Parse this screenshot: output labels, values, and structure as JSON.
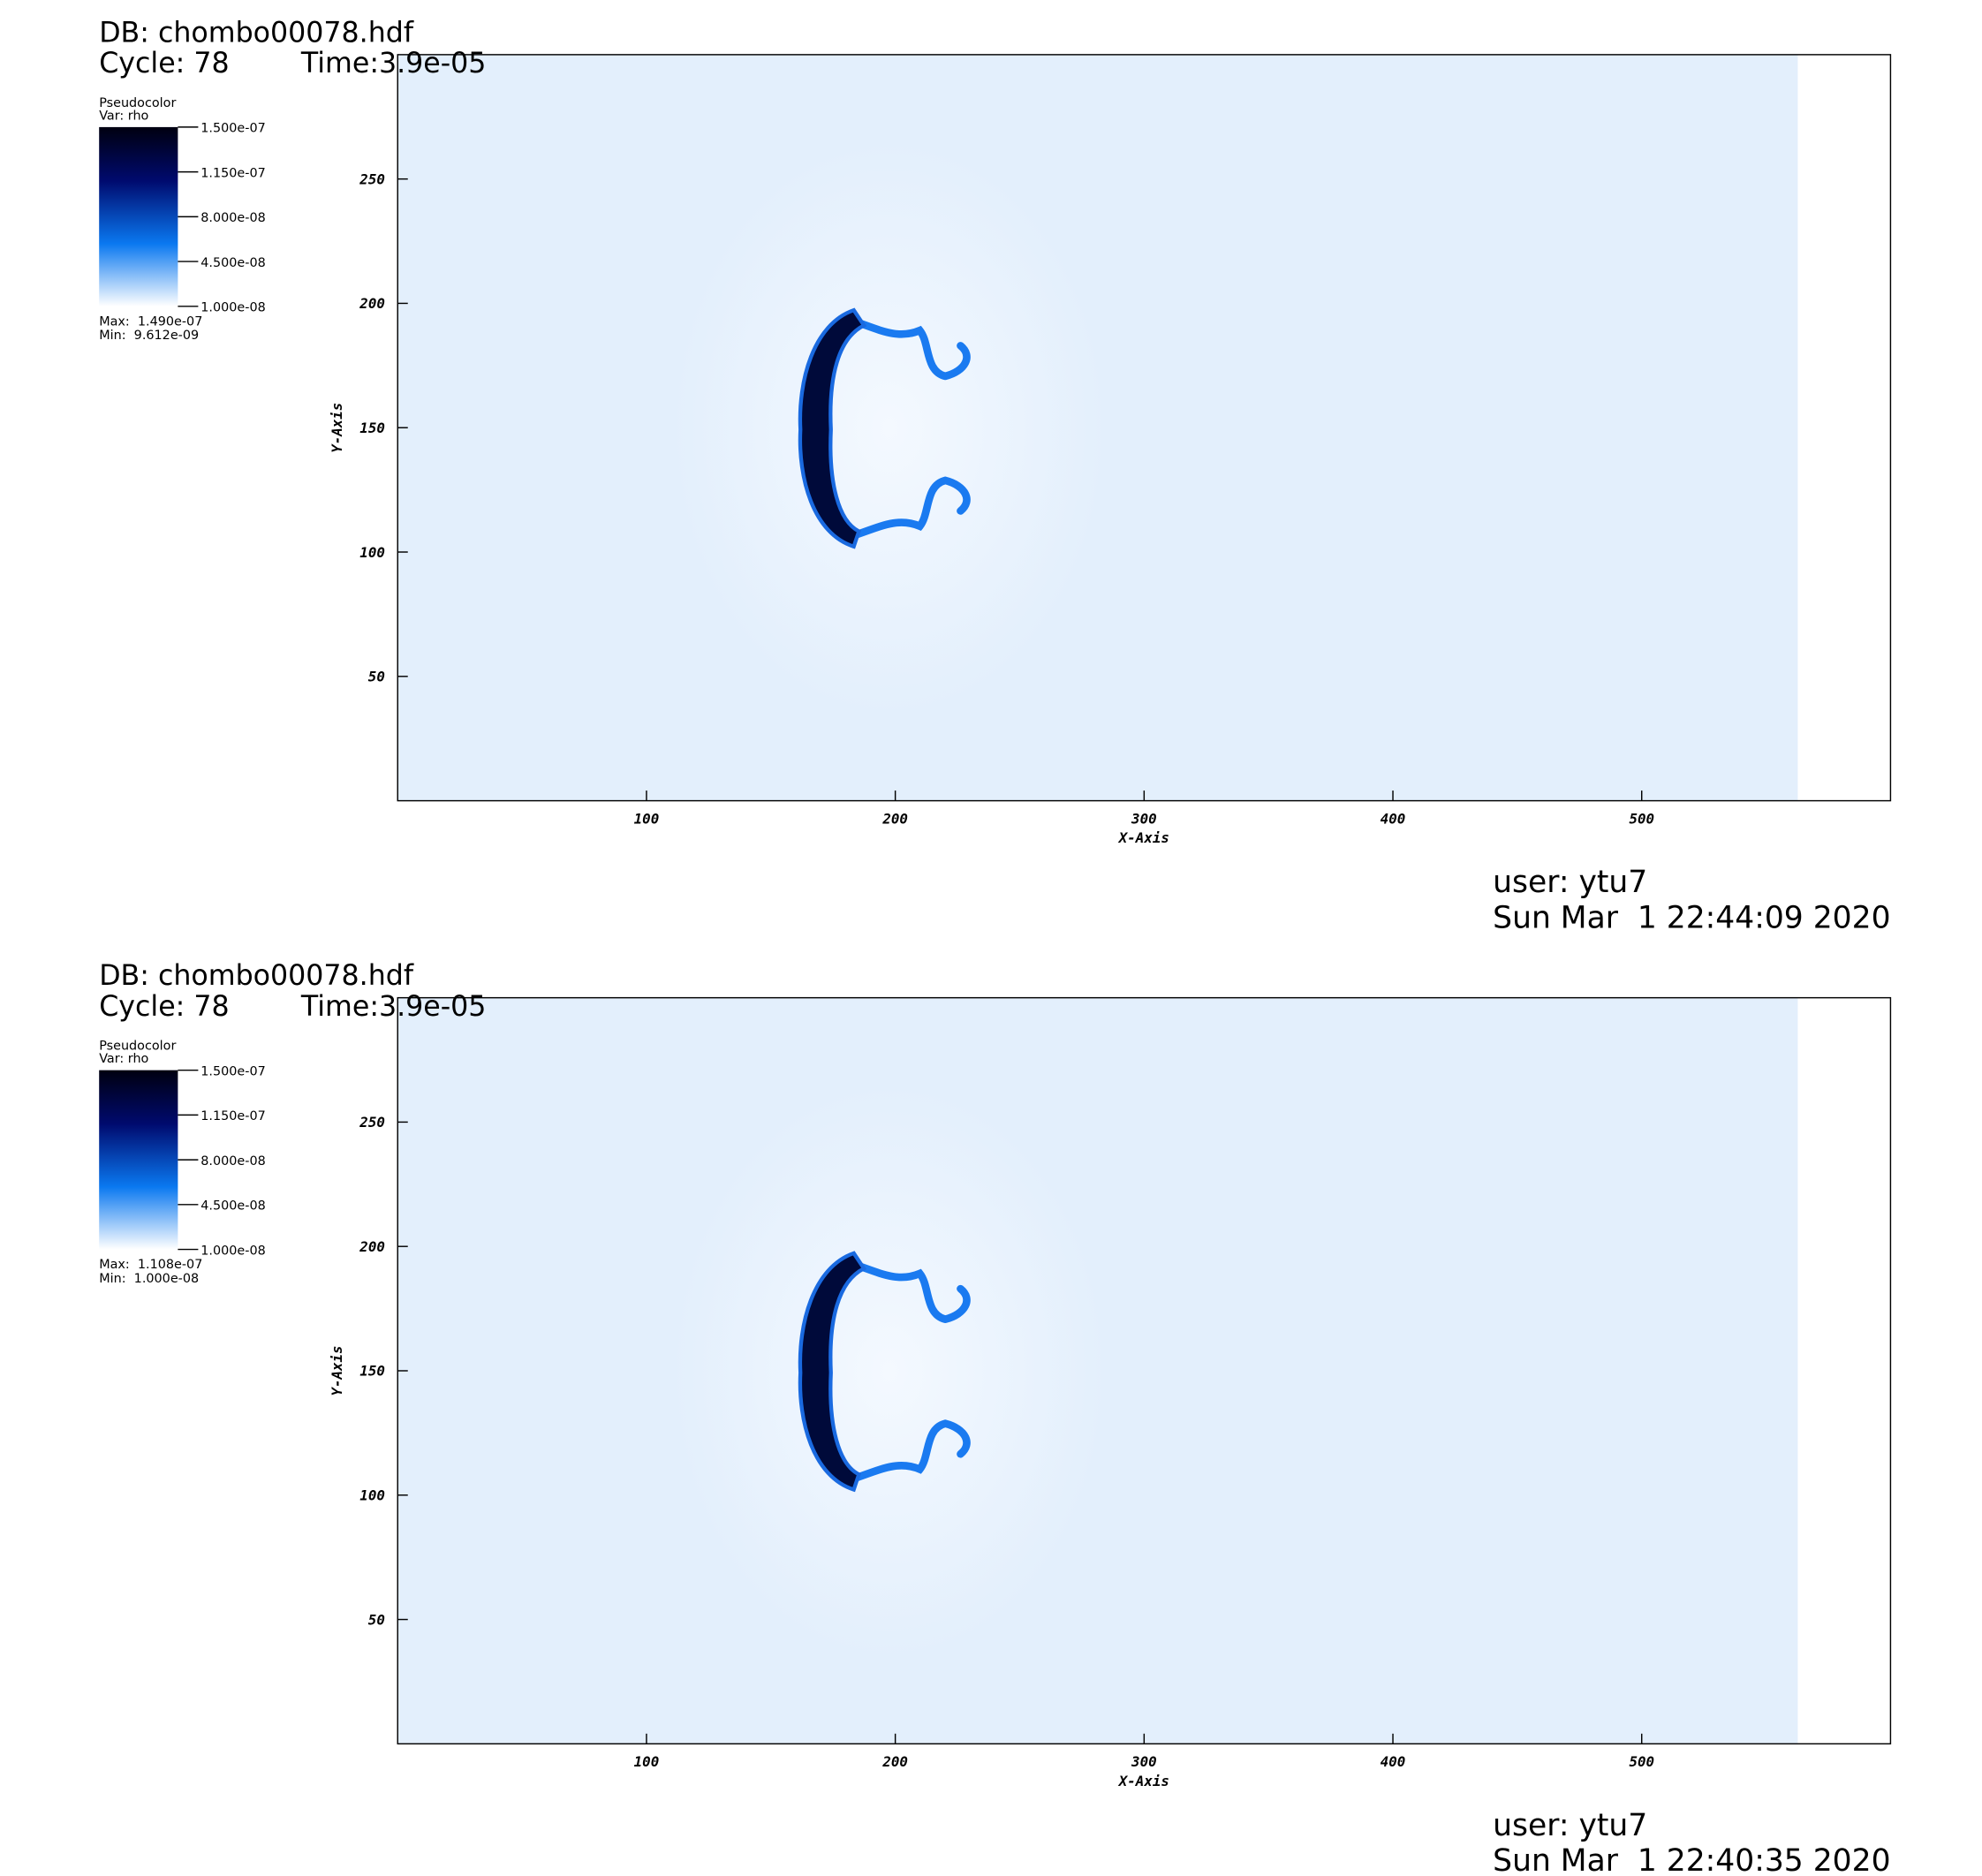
{
  "chart_data": [
    {
      "type": "pseudocolor",
      "db": "DB: chombo00078.hdf",
      "cycle": "Cycle: 78",
      "time": "Time:3.9e-05",
      "plot": "Pseudocolor",
      "var": "Var: rho",
      "max": "Max:  1.490e-07",
      "min": "Min:  9.612e-09",
      "xlabel": "X-Axis",
      "ylabel": "Y-Axis",
      "xlim": [
        0,
        600
      ],
      "ylim": [
        0,
        300
      ],
      "xticks": [
        100,
        200,
        300,
        400,
        500
      ],
      "yticks": [
        50,
        100,
        150,
        200,
        250
      ],
      "clim": [
        1e-08,
        1.5e-07
      ],
      "cticks": [
        {
          "value": 1.5e-07,
          "label": "1.500e-07"
        },
        {
          "value": 1.15e-07,
          "label": "1.150e-07"
        },
        {
          "value": 8e-08,
          "label": "8.000e-08"
        },
        {
          "value": 4.5e-08,
          "label": "4.500e-08"
        },
        {
          "value": 1e-08,
          "label": "1.000e-08"
        }
      ],
      "user": "user: ytu7",
      "date": "Sun Mar  1 22:44:09 2020"
    },
    {
      "type": "pseudocolor",
      "db": "DB: chombo00078.hdf",
      "cycle": "Cycle: 78",
      "time": "Time:3.9e-05",
      "plot": "Pseudocolor",
      "var": "Var: rho",
      "max": "Max:  1.108e-07",
      "min": "Min:  1.000e-08",
      "xlabel": "X-Axis",
      "ylabel": "Y-Axis",
      "xlim": [
        0,
        600
      ],
      "ylim": [
        0,
        300
      ],
      "xticks": [
        100,
        200,
        300,
        400,
        500
      ],
      "yticks": [
        50,
        100,
        150,
        200,
        250
      ],
      "clim": [
        1e-08,
        1.5e-07
      ],
      "cticks": [
        {
          "value": 1.5e-07,
          "label": "1.500e-07"
        },
        {
          "value": 1.15e-07,
          "label": "1.150e-07"
        },
        {
          "value": 8e-08,
          "label": "8.000e-08"
        },
        {
          "value": 4.5e-08,
          "label": "4.500e-08"
        },
        {
          "value": 1e-08,
          "label": "1.000e-08"
        }
      ],
      "user": "user: ytu7",
      "date": "Sun Mar  1 22:40:35 2020"
    }
  ]
}
